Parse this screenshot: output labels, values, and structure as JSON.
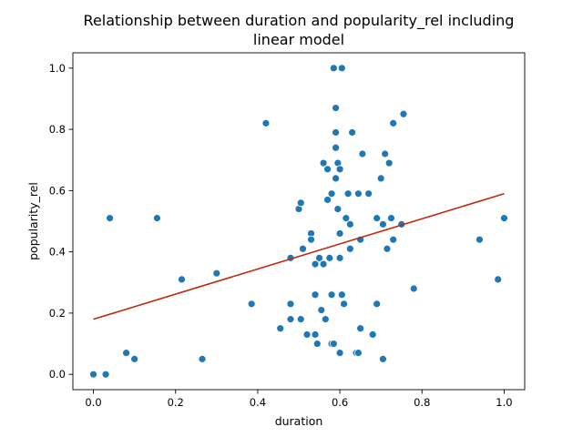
{
  "chart_data": {
    "type": "scatter",
    "title_lines": [
      "Relationship between duration and popularity_rel including",
      "linear model"
    ],
    "xlabel": "duration",
    "ylabel": "popularity_rel",
    "xlim": [
      -0.05,
      1.05
    ],
    "ylim": [
      -0.05,
      1.05
    ],
    "xticks": [
      0.0,
      0.2,
      0.4,
      0.6,
      0.8,
      1.0
    ],
    "xtick_labels": [
      "0.0",
      "0.2",
      "0.4",
      "0.6",
      "0.8",
      "1.0"
    ],
    "yticks": [
      0.0,
      0.2,
      0.4,
      0.6,
      0.8,
      1.0
    ],
    "ytick_labels": [
      "0.0",
      "0.2",
      "0.4",
      "0.6",
      "0.8",
      "1.0"
    ],
    "grid": false,
    "point_color": "#1f77b4",
    "line_color": "#bf2a0e",
    "points": [
      [
        0.0,
        0.0
      ],
      [
        0.03,
        0.0
      ],
      [
        0.04,
        0.51
      ],
      [
        0.08,
        0.07
      ],
      [
        0.1,
        0.05
      ],
      [
        0.155,
        0.51
      ],
      [
        0.215,
        0.31
      ],
      [
        0.265,
        0.05
      ],
      [
        0.3,
        0.33
      ],
      [
        0.385,
        0.23
      ],
      [
        0.42,
        0.82
      ],
      [
        0.455,
        0.15
      ],
      [
        0.48,
        0.38
      ],
      [
        0.48,
        0.23
      ],
      [
        0.48,
        0.18
      ],
      [
        0.5,
        0.54
      ],
      [
        0.505,
        0.56
      ],
      [
        0.505,
        0.18
      ],
      [
        0.51,
        0.41
      ],
      [
        0.52,
        0.13
      ],
      [
        0.53,
        0.46
      ],
      [
        0.53,
        0.44
      ],
      [
        0.54,
        0.36
      ],
      [
        0.54,
        0.26
      ],
      [
        0.54,
        0.13
      ],
      [
        0.545,
        0.1
      ],
      [
        0.55,
        0.38
      ],
      [
        0.555,
        0.21
      ],
      [
        0.56,
        0.69
      ],
      [
        0.56,
        0.36
      ],
      [
        0.565,
        0.18
      ],
      [
        0.57,
        0.67
      ],
      [
        0.57,
        0.57
      ],
      [
        0.575,
        0.38
      ],
      [
        0.58,
        0.59
      ],
      [
        0.58,
        0.26
      ],
      [
        0.58,
        0.1
      ],
      [
        0.585,
        1.0
      ],
      [
        0.585,
        0.1
      ],
      [
        0.59,
        0.74
      ],
      [
        0.59,
        0.64
      ],
      [
        0.59,
        0.79
      ],
      [
        0.59,
        0.87
      ],
      [
        0.595,
        0.54
      ],
      [
        0.595,
        0.69
      ],
      [
        0.6,
        0.38
      ],
      [
        0.6,
        0.07
      ],
      [
        0.6,
        0.46
      ],
      [
        0.605,
        0.26
      ],
      [
        0.6,
        0.67
      ],
      [
        0.605,
        1.0
      ],
      [
        0.61,
        0.23
      ],
      [
        0.615,
        0.51
      ],
      [
        0.62,
        0.59
      ],
      [
        0.625,
        0.41
      ],
      [
        0.625,
        0.49
      ],
      [
        0.63,
        0.79
      ],
      [
        0.64,
        0.07
      ],
      [
        0.645,
        0.59
      ],
      [
        0.645,
        0.07
      ],
      [
        0.65,
        0.15
      ],
      [
        0.65,
        0.44
      ],
      [
        0.655,
        0.72
      ],
      [
        0.67,
        0.59
      ],
      [
        0.68,
        0.13
      ],
      [
        0.69,
        0.23
      ],
      [
        0.69,
        0.51
      ],
      [
        0.7,
        0.64
      ],
      [
        0.705,
        0.49
      ],
      [
        0.705,
        0.05
      ],
      [
        0.71,
        0.72
      ],
      [
        0.715,
        0.41
      ],
      [
        0.72,
        0.69
      ],
      [
        0.725,
        0.51
      ],
      [
        0.73,
        0.82
      ],
      [
        0.73,
        0.44
      ],
      [
        0.75,
        0.49
      ],
      [
        0.755,
        0.85
      ],
      [
        0.78,
        0.28
      ],
      [
        0.94,
        0.44
      ],
      [
        0.985,
        0.31
      ],
      [
        1.0,
        0.51
      ]
    ],
    "regression_line": {
      "x": [
        0.0,
        1.0
      ],
      "y": [
        0.18,
        0.59
      ]
    }
  }
}
